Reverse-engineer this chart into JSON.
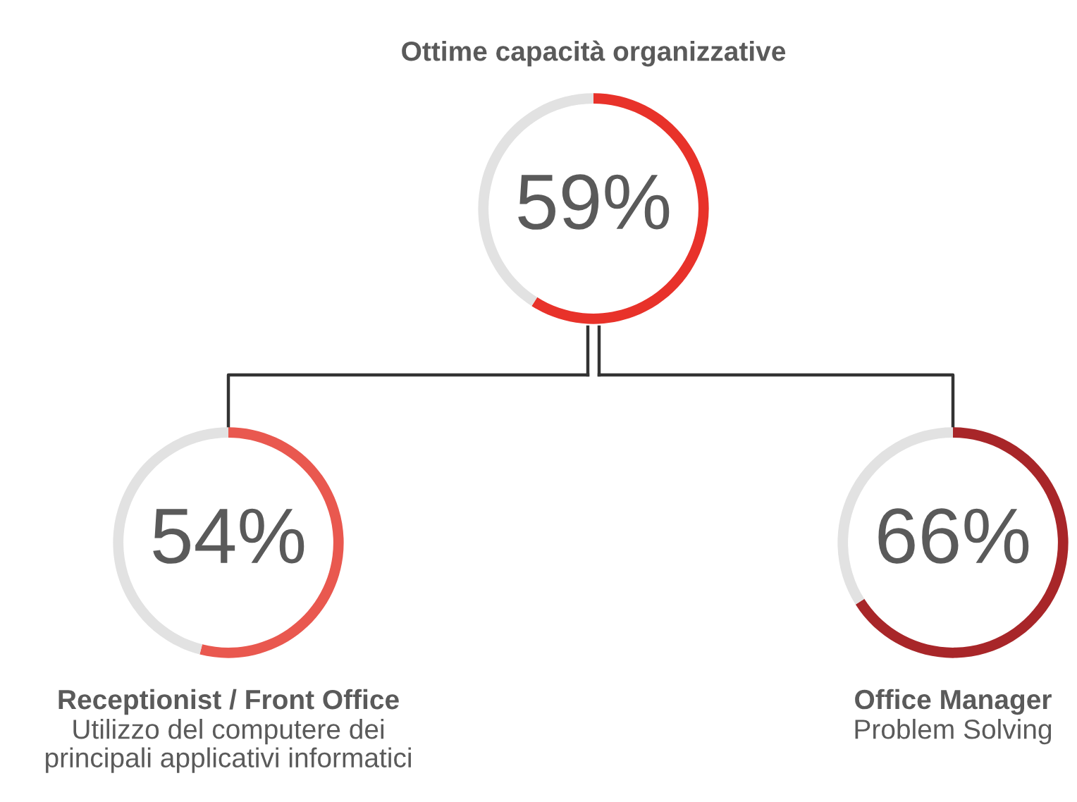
{
  "chart_data": [
    {
      "type": "donut",
      "title": "Ottime capacità organizzative",
      "categories": [
        null,
        null
      ],
      "values": [
        59,
        41
      ],
      "colors": [
        "#e8322a",
        "#e2e2e2"
      ],
      "value_labels": [
        "59%",
        null
      ]
    },
    {
      "type": "donut",
      "title": "Receptionist / Front Office",
      "subtitle": "Utilizzo del computere dei\nprincipali applicativi informatici",
      "categories": [
        null,
        null
      ],
      "values": [
        54,
        46
      ],
      "colors": [
        "#e9584f",
        "#e2e2e2"
      ],
      "value_labels": [
        "54%",
        null
      ]
    },
    {
      "type": "donut",
      "title": "Office Manager",
      "subtitle": "Problem Solving",
      "categories": [
        null,
        null
      ],
      "values": [
        66,
        34
      ],
      "colors": [
        "#a82629",
        "#e2e2e2"
      ],
      "value_labels": [
        "66%",
        null
      ]
    }
  ]
}
